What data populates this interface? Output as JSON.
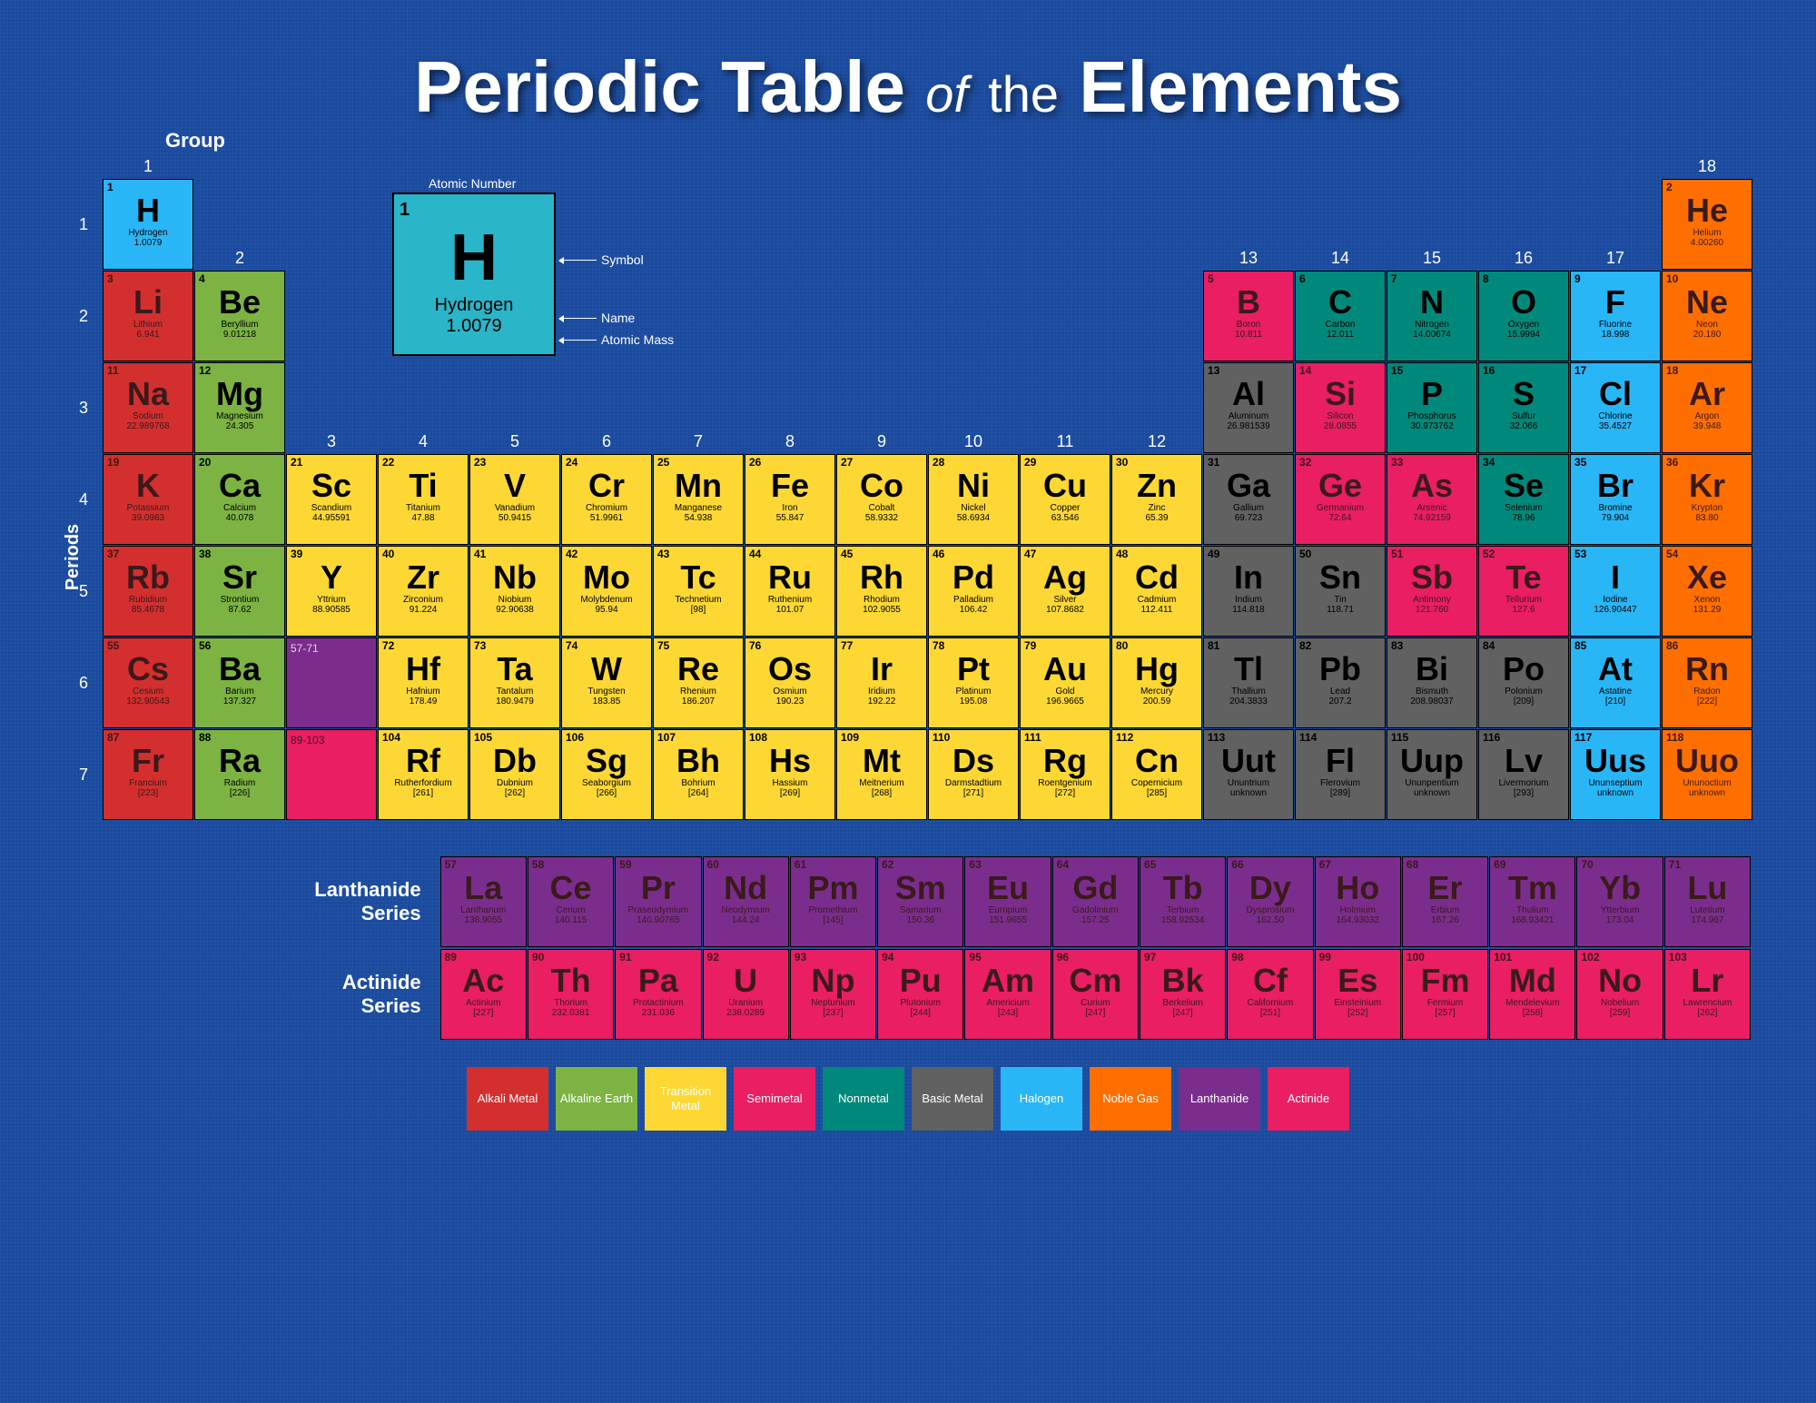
{
  "title": {
    "t1": "Periodic Table",
    "t2": "of",
    "t3": "the",
    "t4": "Elements"
  },
  "labels": {
    "group": "Group",
    "periods": "Periods",
    "lanthanide": "Lanthanide Series",
    "actinide": "Actinide Series",
    "legend": {
      "atomicNumber": "Atomic Number",
      "symbol": "Symbol",
      "name": "Name",
      "atomicMass": "Atomic Mass"
    }
  },
  "colors": {
    "alkali": "#d32f2f",
    "alkaline": "#7cb342",
    "transition": "#fdd835",
    "semimetal": "#e91e63",
    "nonmetal": "#00897b",
    "basic": "#616161",
    "halogen": "#29b6f6",
    "noble": "#ff6f00",
    "lanthanide": "#7b2d8e",
    "actinide": "#e91e63",
    "bg": "#1a4a9e",
    "text_dark": "#000",
    "text_light": "#fff"
  },
  "categories": [
    {
      "key": "alkali",
      "label": "Alkali Metal"
    },
    {
      "key": "alkaline",
      "label": "Alkaline Earth"
    },
    {
      "key": "transition",
      "label": "Transition Metal"
    },
    {
      "key": "semimetal",
      "label": "Semimetal"
    },
    {
      "key": "nonmetal",
      "label": "Nonmetal"
    },
    {
      "key": "basic",
      "label": "Basic Metal"
    },
    {
      "key": "halogen",
      "label": "Halogen"
    },
    {
      "key": "noble",
      "label": "Noble Gas"
    },
    {
      "key": "lanthanide",
      "label": "Lanthanide"
    },
    {
      "key": "actinide",
      "label": "Actinide"
    }
  ],
  "legend_el": {
    "n": "1",
    "s": "H",
    "nm": "Hydrogen",
    "m": "1.0079"
  },
  "groups": [
    1,
    2,
    3,
    4,
    5,
    6,
    7,
    8,
    9,
    10,
    11,
    12,
    13,
    14,
    15,
    16,
    17,
    18
  ],
  "periods": [
    1,
    2,
    3,
    4,
    5,
    6,
    7
  ],
  "ranges": {
    "la": "57-71",
    "ac": "89-103"
  },
  "elements": [
    {
      "n": 1,
      "s": "H",
      "nm": "Hydrogen",
      "m": "1.0079",
      "p": 1,
      "g": 1,
      "c": "halogen"
    },
    {
      "n": 2,
      "s": "He",
      "nm": "Helium",
      "m": "4.00260",
      "p": 1,
      "g": 18,
      "c": "noble"
    },
    {
      "n": 3,
      "s": "Li",
      "nm": "Lithium",
      "m": "6.941",
      "p": 2,
      "g": 1,
      "c": "alkali"
    },
    {
      "n": 4,
      "s": "Be",
      "nm": "Beryllium",
      "m": "9.01218",
      "p": 2,
      "g": 2,
      "c": "alkaline"
    },
    {
      "n": 5,
      "s": "B",
      "nm": "Boron",
      "m": "10.811",
      "p": 2,
      "g": 13,
      "c": "semimetal"
    },
    {
      "n": 6,
      "s": "C",
      "nm": "Carbon",
      "m": "12.011",
      "p": 2,
      "g": 14,
      "c": "nonmetal"
    },
    {
      "n": 7,
      "s": "N",
      "nm": "Nitrogen",
      "m": "14.00674",
      "p": 2,
      "g": 15,
      "c": "nonmetal"
    },
    {
      "n": 8,
      "s": "O",
      "nm": "Oxygen",
      "m": "15.9994",
      "p": 2,
      "g": 16,
      "c": "nonmetal"
    },
    {
      "n": 9,
      "s": "F",
      "nm": "Fluorine",
      "m": "18.998",
      "p": 2,
      "g": 17,
      "c": "halogen"
    },
    {
      "n": 10,
      "s": "Ne",
      "nm": "Neon",
      "m": "20.180",
      "p": 2,
      "g": 18,
      "c": "noble"
    },
    {
      "n": 11,
      "s": "Na",
      "nm": "Sodium",
      "m": "22.989768",
      "p": 3,
      "g": 1,
      "c": "alkali"
    },
    {
      "n": 12,
      "s": "Mg",
      "nm": "Magnesium",
      "m": "24.305",
      "p": 3,
      "g": 2,
      "c": "alkaline"
    },
    {
      "n": 13,
      "s": "Al",
      "nm": "Aluminum",
      "m": "26.981539",
      "p": 3,
      "g": 13,
      "c": "basic"
    },
    {
      "n": 14,
      "s": "Si",
      "nm": "Silicon",
      "m": "28.0855",
      "p": 3,
      "g": 14,
      "c": "semimetal"
    },
    {
      "n": 15,
      "s": "P",
      "nm": "Phosphorus",
      "m": "30.973762",
      "p": 3,
      "g": 15,
      "c": "nonmetal"
    },
    {
      "n": 16,
      "s": "S",
      "nm": "Sulfur",
      "m": "32.066",
      "p": 3,
      "g": 16,
      "c": "nonmetal"
    },
    {
      "n": 17,
      "s": "Cl",
      "nm": "Chlorine",
      "m": "35.4527",
      "p": 3,
      "g": 17,
      "c": "halogen"
    },
    {
      "n": 18,
      "s": "Ar",
      "nm": "Argon",
      "m": "39.948",
      "p": 3,
      "g": 18,
      "c": "noble"
    },
    {
      "n": 19,
      "s": "K",
      "nm": "Potassium",
      "m": "39.0983",
      "p": 4,
      "g": 1,
      "c": "alkali"
    },
    {
      "n": 20,
      "s": "Ca",
      "nm": "Calcium",
      "m": "40.078",
      "p": 4,
      "g": 2,
      "c": "alkaline"
    },
    {
      "n": 21,
      "s": "Sc",
      "nm": "Scandium",
      "m": "44.95591",
      "p": 4,
      "g": 3,
      "c": "transition"
    },
    {
      "n": 22,
      "s": "Ti",
      "nm": "Titanium",
      "m": "47.88",
      "p": 4,
      "g": 4,
      "c": "transition"
    },
    {
      "n": 23,
      "s": "V",
      "nm": "Vanadium",
      "m": "50.9415",
      "p": 4,
      "g": 5,
      "c": "transition"
    },
    {
      "n": 24,
      "s": "Cr",
      "nm": "Chromium",
      "m": "51.9961",
      "p": 4,
      "g": 6,
      "c": "transition"
    },
    {
      "n": 25,
      "s": "Mn",
      "nm": "Manganese",
      "m": "54.938",
      "p": 4,
      "g": 7,
      "c": "transition"
    },
    {
      "n": 26,
      "s": "Fe",
      "nm": "Iron",
      "m": "55.847",
      "p": 4,
      "g": 8,
      "c": "transition"
    },
    {
      "n": 27,
      "s": "Co",
      "nm": "Cobalt",
      "m": "58.9332",
      "p": 4,
      "g": 9,
      "c": "transition"
    },
    {
      "n": 28,
      "s": "Ni",
      "nm": "Nickel",
      "m": "58.6934",
      "p": 4,
      "g": 10,
      "c": "transition"
    },
    {
      "n": 29,
      "s": "Cu",
      "nm": "Copper",
      "m": "63.546",
      "p": 4,
      "g": 11,
      "c": "transition"
    },
    {
      "n": 30,
      "s": "Zn",
      "nm": "Zinc",
      "m": "65.39",
      "p": 4,
      "g": 12,
      "c": "transition"
    },
    {
      "n": 31,
      "s": "Ga",
      "nm": "Gallium",
      "m": "69.723",
      "p": 4,
      "g": 13,
      "c": "basic"
    },
    {
      "n": 32,
      "s": "Ge",
      "nm": "Germanium",
      "m": "72.64",
      "p": 4,
      "g": 14,
      "c": "semimetal"
    },
    {
      "n": 33,
      "s": "As",
      "nm": "Arsenic",
      "m": "74.92159",
      "p": 4,
      "g": 15,
      "c": "semimetal"
    },
    {
      "n": 34,
      "s": "Se",
      "nm": "Selenium",
      "m": "78.96",
      "p": 4,
      "g": 16,
      "c": "nonmetal"
    },
    {
      "n": 35,
      "s": "Br",
      "nm": "Bromine",
      "m": "79.904",
      "p": 4,
      "g": 17,
      "c": "halogen"
    },
    {
      "n": 36,
      "s": "Kr",
      "nm": "Krypton",
      "m": "83.80",
      "p": 4,
      "g": 18,
      "c": "noble"
    },
    {
      "n": 37,
      "s": "Rb",
      "nm": "Rubidium",
      "m": "85.4678",
      "p": 5,
      "g": 1,
      "c": "alkali"
    },
    {
      "n": 38,
      "s": "Sr",
      "nm": "Strontium",
      "m": "87.62",
      "p": 5,
      "g": 2,
      "c": "alkaline"
    },
    {
      "n": 39,
      "s": "Y",
      "nm": "Yttrium",
      "m": "88.90585",
      "p": 5,
      "g": 3,
      "c": "transition"
    },
    {
      "n": 40,
      "s": "Zr",
      "nm": "Zirconium",
      "m": "91.224",
      "p": 5,
      "g": 4,
      "c": "transition"
    },
    {
      "n": 41,
      "s": "Nb",
      "nm": "Niobium",
      "m": "92.90638",
      "p": 5,
      "g": 5,
      "c": "transition"
    },
    {
      "n": 42,
      "s": "Mo",
      "nm": "Molybdenum",
      "m": "95.94",
      "p": 5,
      "g": 6,
      "c": "transition"
    },
    {
      "n": 43,
      "s": "Tc",
      "nm": "Technetium",
      "m": "[98]",
      "p": 5,
      "g": 7,
      "c": "transition"
    },
    {
      "n": 44,
      "s": "Ru",
      "nm": "Ruthenium",
      "m": "101.07",
      "p": 5,
      "g": 8,
      "c": "transition"
    },
    {
      "n": 45,
      "s": "Rh",
      "nm": "Rhodium",
      "m": "102.9055",
      "p": 5,
      "g": 9,
      "c": "transition"
    },
    {
      "n": 46,
      "s": "Pd",
      "nm": "Palladium",
      "m": "106.42",
      "p": 5,
      "g": 10,
      "c": "transition"
    },
    {
      "n": 47,
      "s": "Ag",
      "nm": "Silver",
      "m": "107.8682",
      "p": 5,
      "g": 11,
      "c": "transition"
    },
    {
      "n": 48,
      "s": "Cd",
      "nm": "Cadmium",
      "m": "112.411",
      "p": 5,
      "g": 12,
      "c": "transition"
    },
    {
      "n": 49,
      "s": "In",
      "nm": "Indium",
      "m": "114.818",
      "p": 5,
      "g": 13,
      "c": "basic"
    },
    {
      "n": 50,
      "s": "Sn",
      "nm": "Tin",
      "m": "118.71",
      "p": 5,
      "g": 14,
      "c": "basic"
    },
    {
      "n": 51,
      "s": "Sb",
      "nm": "Antimony",
      "m": "121.760",
      "p": 5,
      "g": 15,
      "c": "semimetal"
    },
    {
      "n": 52,
      "s": "Te",
      "nm": "Tellurium",
      "m": "127.6",
      "p": 5,
      "g": 16,
      "c": "semimetal"
    },
    {
      "n": 53,
      "s": "I",
      "nm": "Iodine",
      "m": "126.90447",
      "p": 5,
      "g": 17,
      "c": "halogen"
    },
    {
      "n": 54,
      "s": "Xe",
      "nm": "Xenon",
      "m": "131.29",
      "p": 5,
      "g": 18,
      "c": "noble"
    },
    {
      "n": 55,
      "s": "Cs",
      "nm": "Cesium",
      "m": "132.90543",
      "p": 6,
      "g": 1,
      "c": "alkali"
    },
    {
      "n": 56,
      "s": "Ba",
      "nm": "Barium",
      "m": "137.327",
      "p": 6,
      "g": 2,
      "c": "alkaline"
    },
    {
      "n": 72,
      "s": "Hf",
      "nm": "Hafnium",
      "m": "178.49",
      "p": 6,
      "g": 4,
      "c": "transition"
    },
    {
      "n": 73,
      "s": "Ta",
      "nm": "Tantalum",
      "m": "180.9479",
      "p": 6,
      "g": 5,
      "c": "transition"
    },
    {
      "n": 74,
      "s": "W",
      "nm": "Tungsten",
      "m": "183.85",
      "p": 6,
      "g": 6,
      "c": "transition"
    },
    {
      "n": 75,
      "s": "Re",
      "nm": "Rhenium",
      "m": "186.207",
      "p": 6,
      "g": 7,
      "c": "transition"
    },
    {
      "n": 76,
      "s": "Os",
      "nm": "Osmium",
      "m": "190.23",
      "p": 6,
      "g": 8,
      "c": "transition"
    },
    {
      "n": 77,
      "s": "Ir",
      "nm": "Iridium",
      "m": "192.22",
      "p": 6,
      "g": 9,
      "c": "transition"
    },
    {
      "n": 78,
      "s": "Pt",
      "nm": "Platinum",
      "m": "195.08",
      "p": 6,
      "g": 10,
      "c": "transition"
    },
    {
      "n": 79,
      "s": "Au",
      "nm": "Gold",
      "m": "196.9665",
      "p": 6,
      "g": 11,
      "c": "transition"
    },
    {
      "n": 80,
      "s": "Hg",
      "nm": "Mercury",
      "m": "200.59",
      "p": 6,
      "g": 12,
      "c": "transition"
    },
    {
      "n": 81,
      "s": "Tl",
      "nm": "Thallium",
      "m": "204.3833",
      "p": 6,
      "g": 13,
      "c": "basic"
    },
    {
      "n": 82,
      "s": "Pb",
      "nm": "Lead",
      "m": "207.2",
      "p": 6,
      "g": 14,
      "c": "basic"
    },
    {
      "n": 83,
      "s": "Bi",
      "nm": "Bismuth",
      "m": "208.98037",
      "p": 6,
      "g": 15,
      "c": "basic"
    },
    {
      "n": 84,
      "s": "Po",
      "nm": "Polonium",
      "m": "[209]",
      "p": 6,
      "g": 16,
      "c": "basic"
    },
    {
      "n": 85,
      "s": "At",
      "nm": "Astatine",
      "m": "[210]",
      "p": 6,
      "g": 17,
      "c": "halogen"
    },
    {
      "n": 86,
      "s": "Rn",
      "nm": "Radon",
      "m": "[222]",
      "p": 6,
      "g": 18,
      "c": "noble"
    },
    {
      "n": 87,
      "s": "Fr",
      "nm": "Francium",
      "m": "[223]",
      "p": 7,
      "g": 1,
      "c": "alkali"
    },
    {
      "n": 88,
      "s": "Ra",
      "nm": "Radium",
      "m": "[226]",
      "p": 7,
      "g": 2,
      "c": "alkaline"
    },
    {
      "n": 104,
      "s": "Rf",
      "nm": "Rutherfordium",
      "m": "[261]",
      "p": 7,
      "g": 4,
      "c": "transition"
    },
    {
      "n": 105,
      "s": "Db",
      "nm": "Dubnium",
      "m": "[262]",
      "p": 7,
      "g": 5,
      "c": "transition"
    },
    {
      "n": 106,
      "s": "Sg",
      "nm": "Seaborgium",
      "m": "[266]",
      "p": 7,
      "g": 6,
      "c": "transition"
    },
    {
      "n": 107,
      "s": "Bh",
      "nm": "Bohrium",
      "m": "[264]",
      "p": 7,
      "g": 7,
      "c": "transition"
    },
    {
      "n": 108,
      "s": "Hs",
      "nm": "Hassium",
      "m": "[269]",
      "p": 7,
      "g": 8,
      "c": "transition"
    },
    {
      "n": 109,
      "s": "Mt",
      "nm": "Meitnerium",
      "m": "[268]",
      "p": 7,
      "g": 9,
      "c": "transition"
    },
    {
      "n": 110,
      "s": "Ds",
      "nm": "Darmstadtium",
      "m": "[271]",
      "p": 7,
      "g": 10,
      "c": "transition"
    },
    {
      "n": 111,
      "s": "Rg",
      "nm": "Roentgenium",
      "m": "[272]",
      "p": 7,
      "g": 11,
      "c": "transition"
    },
    {
      "n": 112,
      "s": "Cn",
      "nm": "Copernicium",
      "m": "[285]",
      "p": 7,
      "g": 12,
      "c": "transition"
    },
    {
      "n": 113,
      "s": "Uut",
      "nm": "Ununtrium",
      "m": "unknown",
      "p": 7,
      "g": 13,
      "c": "basic"
    },
    {
      "n": 114,
      "s": "Fl",
      "nm": "Flerovium",
      "m": "[289]",
      "p": 7,
      "g": 14,
      "c": "basic"
    },
    {
      "n": 115,
      "s": "Uup",
      "nm": "Ununpentium",
      "m": "unknown",
      "p": 7,
      "g": 15,
      "c": "basic"
    },
    {
      "n": 116,
      "s": "Lv",
      "nm": "Livermorium",
      "m": "[293]",
      "p": 7,
      "g": 16,
      "c": "basic"
    },
    {
      "n": 117,
      "s": "Uus",
      "nm": "Ununseptium",
      "m": "unknown",
      "p": 7,
      "g": 17,
      "c": "halogen"
    },
    {
      "n": 118,
      "s": "Uuo",
      "nm": "Ununoctium",
      "m": "unknown",
      "p": 7,
      "g": 18,
      "c": "noble"
    }
  ],
  "lanthanides": [
    {
      "n": 57,
      "s": "La",
      "nm": "Lanthanum",
      "m": "138.9055",
      "c": "lanthanide"
    },
    {
      "n": 58,
      "s": "Ce",
      "nm": "Cerium",
      "m": "140.115",
      "c": "lanthanide"
    },
    {
      "n": 59,
      "s": "Pr",
      "nm": "Praseodymium",
      "m": "140.90765",
      "c": "lanthanide"
    },
    {
      "n": 60,
      "s": "Nd",
      "nm": "Neodymium",
      "m": "144.24",
      "c": "lanthanide"
    },
    {
      "n": 61,
      "s": "Pm",
      "nm": "Promethium",
      "m": "[145]",
      "c": "lanthanide"
    },
    {
      "n": 62,
      "s": "Sm",
      "nm": "Samarium",
      "m": "150.36",
      "c": "lanthanide"
    },
    {
      "n": 63,
      "s": "Eu",
      "nm": "Europium",
      "m": "151.9655",
      "c": "lanthanide"
    },
    {
      "n": 64,
      "s": "Gd",
      "nm": "Gadolinium",
      "m": "157.25",
      "c": "lanthanide"
    },
    {
      "n": 65,
      "s": "Tb",
      "nm": "Terbium",
      "m": "158.92534",
      "c": "lanthanide"
    },
    {
      "n": 66,
      "s": "Dy",
      "nm": "Dysprosium",
      "m": "162.50",
      "c": "lanthanide"
    },
    {
      "n": 67,
      "s": "Ho",
      "nm": "Holmium",
      "m": "164.93032",
      "c": "lanthanide"
    },
    {
      "n": 68,
      "s": "Er",
      "nm": "Erbium",
      "m": "167.26",
      "c": "lanthanide"
    },
    {
      "n": 69,
      "s": "Tm",
      "nm": "Thulium",
      "m": "168.93421",
      "c": "lanthanide"
    },
    {
      "n": 70,
      "s": "Yb",
      "nm": "Ytterbium",
      "m": "173.04",
      "c": "lanthanide"
    },
    {
      "n": 71,
      "s": "Lu",
      "nm": "Lutetium",
      "m": "174.967",
      "c": "lanthanide"
    }
  ],
  "actinides": [
    {
      "n": 89,
      "s": "Ac",
      "nm": "Actinium",
      "m": "[227]",
      "c": "actinide"
    },
    {
      "n": 90,
      "s": "Th",
      "nm": "Thorium",
      "m": "232.0381",
      "c": "actinide"
    },
    {
      "n": 91,
      "s": "Pa",
      "nm": "Protactinium",
      "m": "231.036",
      "c": "actinide"
    },
    {
      "n": 92,
      "s": "U",
      "nm": "Uranium",
      "m": "238.0289",
      "c": "actinide"
    },
    {
      "n": 93,
      "s": "Np",
      "nm": "Neptunium",
      "m": "[237]",
      "c": "actinide"
    },
    {
      "n": 94,
      "s": "Pu",
      "nm": "Plutonium",
      "m": "[244]",
      "c": "actinide"
    },
    {
      "n": 95,
      "s": "Am",
      "nm": "Americium",
      "m": "[243]",
      "c": "actinide"
    },
    {
      "n": 96,
      "s": "Cm",
      "nm": "Curium",
      "m": "[247]",
      "c": "actinide"
    },
    {
      "n": 97,
      "s": "Bk",
      "nm": "Berkelium",
      "m": "[247]",
      "c": "actinide"
    },
    {
      "n": 98,
      "s": "Cf",
      "nm": "Californium",
      "m": "[251]",
      "c": "actinide"
    },
    {
      "n": 99,
      "s": "Es",
      "nm": "Einsteinium",
      "m": "[252]",
      "c": "actinide"
    },
    {
      "n": 100,
      "s": "Fm",
      "nm": "Fermium",
      "m": "[257]",
      "c": "actinide"
    },
    {
      "n": 101,
      "s": "Md",
      "nm": "Mendelevium",
      "m": "[258]",
      "c": "actinide"
    },
    {
      "n": 102,
      "s": "No",
      "nm": "Nobelium",
      "m": "[259]",
      "c": "actinide"
    },
    {
      "n": 103,
      "s": "Lr",
      "nm": "Lawrencium",
      "m": "[262]",
      "c": "actinide"
    }
  ]
}
